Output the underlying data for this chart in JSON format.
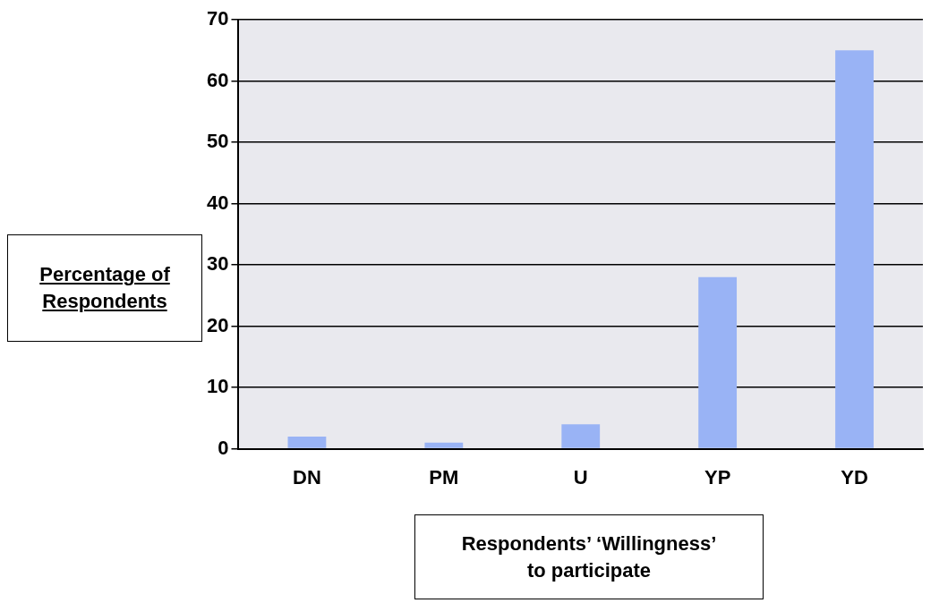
{
  "chart_data": {
    "type": "bar",
    "xlabel": "Respondents’ ‘Willingness’ to participate",
    "ylabel": "Percentage of Respondents",
    "categories": [
      "DN",
      "PM",
      "U",
      "YP",
      "YD"
    ],
    "values": [
      2,
      1,
      4,
      28,
      65
    ],
    "color": "#99b3f5",
    "ylim": [
      0,
      70
    ],
    "yticks": [
      0,
      10,
      20,
      30,
      40,
      50,
      60,
      70
    ],
    "grid": "y"
  }
}
